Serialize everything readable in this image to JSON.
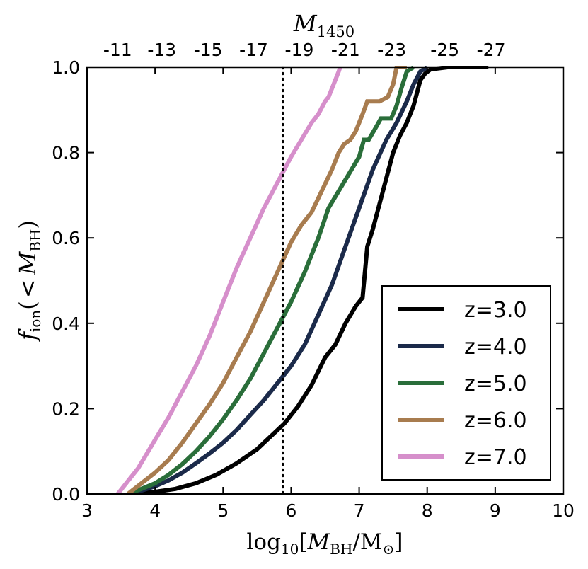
{
  "chart_data": {
    "type": "line",
    "xlabel": {
      "main": "log",
      "sub": "10",
      "bracket_open": "[",
      "var": "M",
      "var_sub": "BH",
      "slash": "/M",
      "sun": "⊙",
      "bracket_close": "]"
    },
    "ylabel": {
      "f": "f",
      "f_sub": "ion",
      "open": "(",
      "lt": "<",
      "var": "M",
      "var_sub": "BH",
      "close": ")"
    },
    "top_xlabel": {
      "var": "M",
      "sub": "1450"
    },
    "xlim": [
      3,
      10
    ],
    "ylim": [
      0,
      1
    ],
    "x_ticks": [
      3,
      4,
      5,
      6,
      7,
      8,
      9,
      10
    ],
    "x_tick_labels": [
      "3",
      "4",
      "5",
      "6",
      "7",
      "8",
      "9",
      "10"
    ],
    "y_ticks": [
      0,
      0.2,
      0.4,
      0.6,
      0.8,
      1.0
    ],
    "y_tick_labels": [
      "0.0",
      "0.2",
      "0.4",
      "0.6",
      "0.8",
      "1.0"
    ],
    "top_ticks": [
      3.45,
      4.1,
      4.78,
      5.45,
      6.12,
      6.8,
      7.48,
      8.26,
      8.94
    ],
    "top_tick_labels": [
      "-11",
      "-13",
      "-15",
      "-17",
      "-19",
      "-21",
      "-23",
      "-25",
      "-27"
    ],
    "vline": {
      "x": 5.88,
      "style": "dotted"
    },
    "legend": {
      "position": "lower-right"
    },
    "series": [
      {
        "name": "z=3.0",
        "color": "#000000",
        "x": [
          3.65,
          4.0,
          4.3,
          4.6,
          4.9,
          5.2,
          5.5,
          5.7,
          5.9,
          6.1,
          6.3,
          6.5,
          6.65,
          6.8,
          6.95,
          7.05,
          7.12,
          7.2,
          7.3,
          7.4,
          7.5,
          7.55,
          7.6,
          7.7,
          7.8,
          7.9,
          7.97,
          8.05,
          8.3,
          8.6,
          8.9
        ],
        "y": [
          0.0,
          0.005,
          0.012,
          0.025,
          0.045,
          0.072,
          0.105,
          0.135,
          0.165,
          0.205,
          0.255,
          0.32,
          0.35,
          0.4,
          0.44,
          0.46,
          0.58,
          0.62,
          0.68,
          0.74,
          0.8,
          0.82,
          0.84,
          0.87,
          0.91,
          0.97,
          0.985,
          0.995,
          1.0,
          1.0,
          1.0
        ]
      },
      {
        "name": "z=4.0",
        "color": "#1b2a4a",
        "x": [
          3.6,
          3.8,
          4.0,
          4.2,
          4.4,
          4.6,
          4.8,
          5.0,
          5.2,
          5.4,
          5.6,
          5.8,
          6.0,
          6.2,
          6.4,
          6.6,
          6.8,
          7.0,
          7.2,
          7.4,
          7.55,
          7.7,
          7.8,
          7.9,
          8.0
        ],
        "y": [
          0.0,
          0.008,
          0.018,
          0.032,
          0.05,
          0.072,
          0.095,
          0.12,
          0.15,
          0.185,
          0.22,
          0.26,
          0.3,
          0.35,
          0.42,
          0.49,
          0.58,
          0.67,
          0.76,
          0.83,
          0.87,
          0.92,
          0.96,
          0.99,
          1.0
        ]
      },
      {
        "name": "z=5.0",
        "color": "#2a6e3a",
        "x": [
          3.6,
          3.8,
          4.0,
          4.2,
          4.4,
          4.6,
          4.8,
          5.0,
          5.2,
          5.4,
          5.6,
          5.8,
          6.0,
          6.2,
          6.4,
          6.55,
          6.7,
          6.85,
          7.0,
          7.07,
          7.14,
          7.25,
          7.32,
          7.4,
          7.47,
          7.55,
          7.62,
          7.7,
          7.8
        ],
        "y": [
          0.0,
          0.012,
          0.025,
          0.045,
          0.07,
          0.1,
          0.135,
          0.175,
          0.22,
          0.27,
          0.33,
          0.39,
          0.45,
          0.52,
          0.6,
          0.67,
          0.71,
          0.75,
          0.79,
          0.83,
          0.83,
          0.86,
          0.88,
          0.88,
          0.88,
          0.91,
          0.95,
          0.99,
          1.0
        ]
      },
      {
        "name": "z=6.0",
        "color": "#a87c4f",
        "x": [
          3.6,
          3.8,
          4.0,
          4.2,
          4.4,
          4.6,
          4.8,
          5.0,
          5.2,
          5.4,
          5.6,
          5.8,
          6.0,
          6.15,
          6.3,
          6.45,
          6.6,
          6.7,
          6.78,
          6.87,
          6.95,
          7.0,
          7.05,
          7.12,
          7.2,
          7.3,
          7.42,
          7.5,
          7.55,
          7.62,
          7.7
        ],
        "y": [
          0.0,
          0.025,
          0.05,
          0.08,
          0.12,
          0.165,
          0.21,
          0.26,
          0.32,
          0.38,
          0.45,
          0.52,
          0.59,
          0.63,
          0.66,
          0.71,
          0.76,
          0.8,
          0.82,
          0.83,
          0.85,
          0.87,
          0.89,
          0.92,
          0.92,
          0.92,
          0.93,
          0.96,
          1.0,
          1.0,
          1.0
        ]
      },
      {
        "name": "z=7.0",
        "color": "#d68fcb",
        "x": [
          3.45,
          3.6,
          3.75,
          3.9,
          4.05,
          4.2,
          4.4,
          4.6,
          4.8,
          5.0,
          5.2,
          5.4,
          5.6,
          5.8,
          6.0,
          6.15,
          6.3,
          6.4,
          6.5,
          6.55,
          6.6,
          6.65,
          6.7,
          6.72
        ],
        "y": [
          0.0,
          0.03,
          0.06,
          0.1,
          0.14,
          0.18,
          0.24,
          0.3,
          0.37,
          0.45,
          0.53,
          0.6,
          0.67,
          0.73,
          0.79,
          0.83,
          0.87,
          0.89,
          0.92,
          0.93,
          0.95,
          0.97,
          0.99,
          1.0
        ]
      }
    ]
  }
}
